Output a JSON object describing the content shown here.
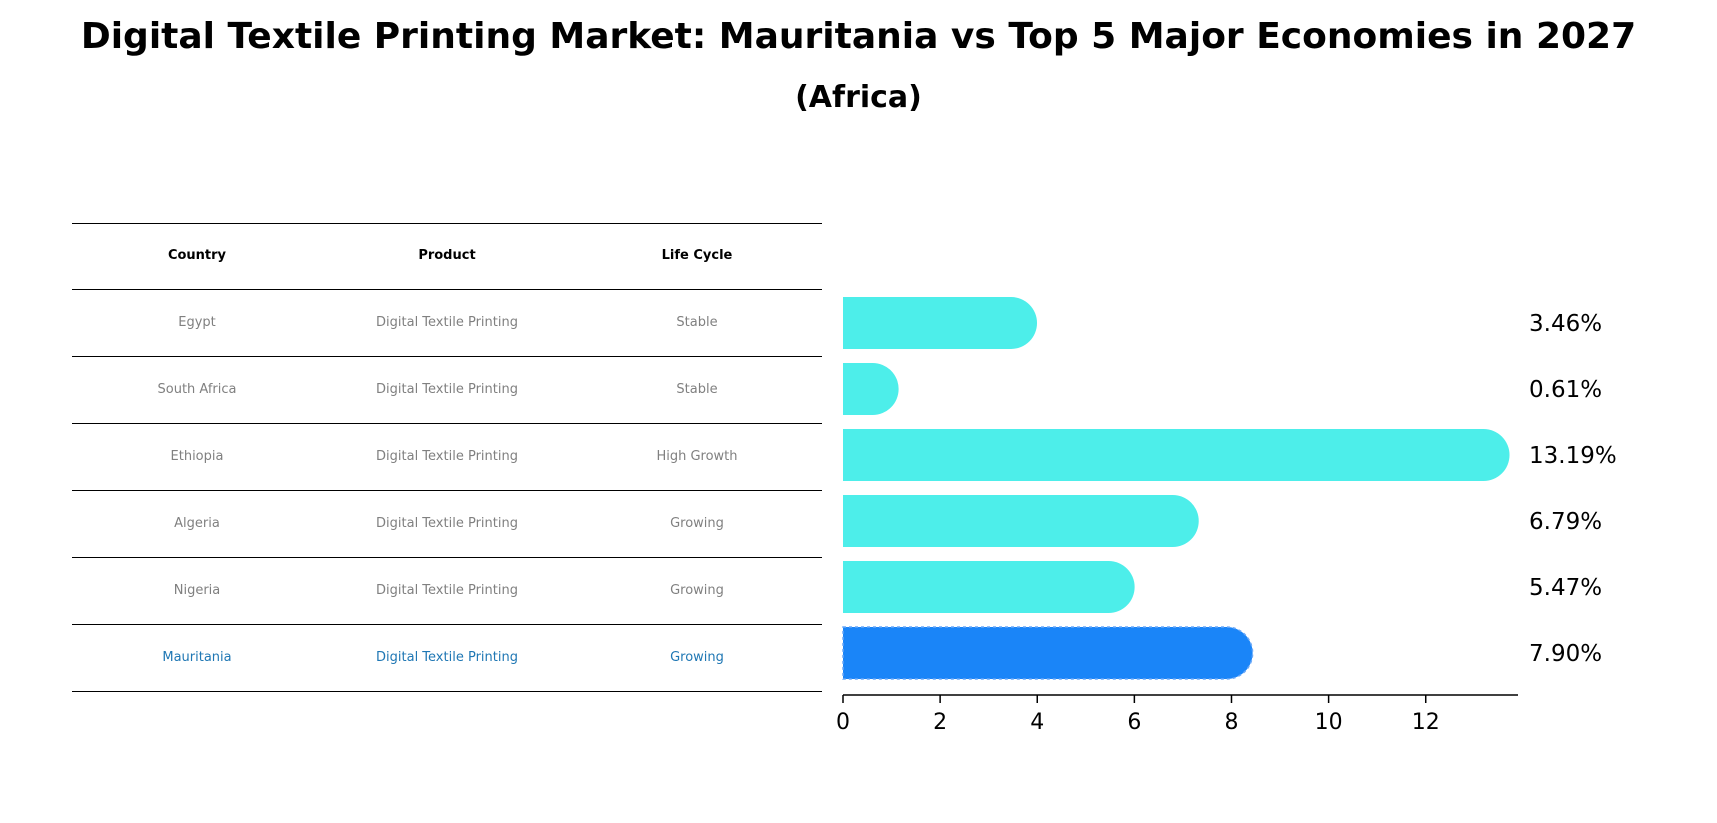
{
  "chart_data": {
    "type": "bar",
    "title": "Digital Textile Printing Market: Mauritania vs Top 5 Major Economies in 2027",
    "subtitle": "(Africa)",
    "table": {
      "headers": [
        "Country",
        "Product",
        "Life Cycle"
      ],
      "rows": [
        [
          "Egypt",
          "Digital Textile Printing",
          "Stable"
        ],
        [
          "South Africa",
          "Digital Textile Printing",
          "Stable"
        ],
        [
          "Ethiopia",
          "Digital Textile Printing",
          "High Growth"
        ],
        [
          "Algeria",
          "Digital Textile Printing",
          "Growing"
        ],
        [
          "Nigeria",
          "Digital Textile Printing",
          "Growing"
        ],
        [
          "Mauritania",
          "Digital Textile Printing",
          "Growing"
        ]
      ],
      "highlight_row": 5
    },
    "categories": [
      "Egypt",
      "South Africa",
      "Ethiopia",
      "Algeria",
      "Nigeria",
      "Mauritania"
    ],
    "values": [
      3.46,
      0.61,
      13.19,
      6.79,
      5.47,
      7.9
    ],
    "value_labels": [
      "3.46%",
      "0.61%",
      "13.19%",
      "6.79%",
      "5.47%",
      "7.90%"
    ],
    "xticks": [
      0,
      2,
      4,
      6,
      8,
      10,
      12
    ],
    "xlim": [
      0,
      13.9
    ],
    "grid": false,
    "colors": {
      "bar": "#4DEEEA",
      "highlight_bar": "#1A85F8",
      "highlight_text": "#1f77b4",
      "table_text": "#808080"
    }
  }
}
